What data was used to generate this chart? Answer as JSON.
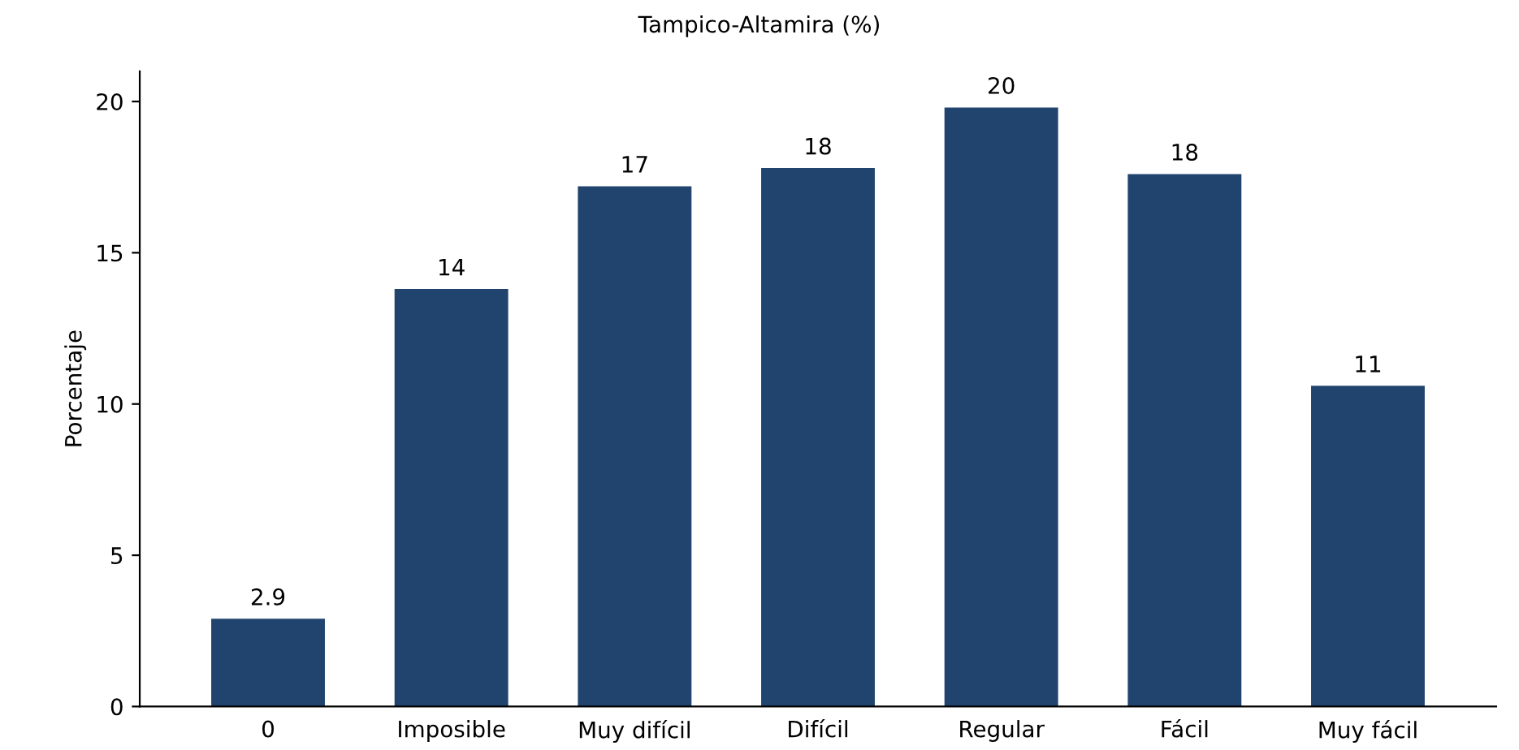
{
  "chart_data": {
    "type": "bar",
    "title": "Tampico-Altamira (%)",
    "ylabel": "Porcentaje",
    "categories": [
      "0",
      "Imposible",
      "Muy difícil",
      "Difícil",
      "Regular",
      "Fácil",
      "Muy fácil"
    ],
    "values": [
      2.9,
      13.8,
      17.2,
      17.8,
      19.8,
      17.6,
      10.6
    ],
    "value_labels": [
      "2.9",
      "14",
      "17",
      "18",
      "20",
      "18",
      "11"
    ],
    "color": "#21446f",
    "ylim": [
      0,
      21
    ],
    "yticks": [
      0,
      5,
      10,
      15,
      20
    ],
    "grid": false,
    "legend": false
  }
}
